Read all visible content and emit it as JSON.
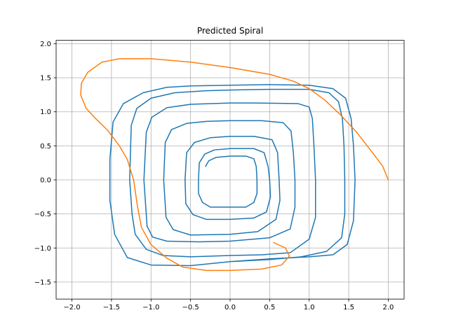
{
  "chart_data": {
    "type": "line",
    "title": "Predicted Spiral",
    "xlabel": "",
    "ylabel": "",
    "xlim": [
      -2.2,
      2.2
    ],
    "ylim": [
      -1.75,
      2.05
    ],
    "x_ticks": [
      -2.0,
      -1.5,
      -1.0,
      -0.5,
      0.0,
      0.5,
      1.0,
      1.5,
      2.0
    ],
    "x_tick_labels": [
      "−2.0",
      "−1.5",
      "−1.0",
      "−0.5",
      "0.0",
      "0.5",
      "1.0",
      "1.5",
      "2.0"
    ],
    "y_ticks": [
      -1.5,
      -1.0,
      -0.5,
      0.0,
      0.5,
      1.0,
      1.5,
      2.0
    ],
    "y_tick_labels": [
      "−1.5",
      "−1.0",
      "−0.5",
      "0.0",
      "0.5",
      "1.0",
      "1.5",
      "2.0"
    ],
    "grid": true,
    "legend": "none",
    "series": [
      {
        "color": "#1f77b4",
        "points": [
          [
            -0.31,
            0.2
          ],
          [
            -0.27,
            0.28
          ],
          [
            -0.18,
            0.33
          ],
          [
            0.0,
            0.35
          ],
          [
            0.2,
            0.35
          ],
          [
            0.3,
            0.31
          ],
          [
            0.33,
            0.2
          ],
          [
            0.34,
            0.0
          ],
          [
            0.34,
            -0.2
          ],
          [
            0.3,
            -0.33
          ],
          [
            0.2,
            -0.4
          ],
          [
            0.0,
            -0.4
          ],
          [
            -0.25,
            -0.4
          ],
          [
            -0.35,
            -0.33
          ],
          [
            -0.4,
            -0.2
          ],
          [
            -0.4,
            0.0
          ],
          [
            -0.39,
            0.25
          ],
          [
            -0.32,
            0.38
          ],
          [
            -0.2,
            0.44
          ],
          [
            0.0,
            0.46
          ],
          [
            0.3,
            0.46
          ],
          [
            0.43,
            0.4
          ],
          [
            0.48,
            0.2
          ],
          [
            0.5,
            0.0
          ],
          [
            0.51,
            -0.25
          ],
          [
            0.46,
            -0.47
          ],
          [
            0.3,
            -0.56
          ],
          [
            0.0,
            -0.58
          ],
          [
            -0.3,
            -0.58
          ],
          [
            -0.47,
            -0.51
          ],
          [
            -0.56,
            -0.35
          ],
          [
            -0.57,
            0.0
          ],
          [
            -0.55,
            0.4
          ],
          [
            -0.45,
            0.55
          ],
          [
            -0.25,
            0.62
          ],
          [
            0.0,
            0.64
          ],
          [
            0.3,
            0.64
          ],
          [
            0.53,
            0.59
          ],
          [
            0.6,
            0.4
          ],
          [
            0.62,
            0.0
          ],
          [
            0.63,
            -0.3
          ],
          [
            0.58,
            -0.58
          ],
          [
            0.35,
            -0.76
          ],
          [
            0.0,
            -0.8
          ],
          [
            -0.5,
            -0.81
          ],
          [
            -0.72,
            -0.73
          ],
          [
            -0.81,
            -0.55
          ],
          [
            -0.84,
            0.0
          ],
          [
            -0.82,
            0.55
          ],
          [
            -0.74,
            0.74
          ],
          [
            -0.55,
            0.83
          ],
          [
            -0.3,
            0.86
          ],
          [
            0.0,
            0.87
          ],
          [
            0.4,
            0.87
          ],
          [
            0.67,
            0.84
          ],
          [
            0.77,
            0.72
          ],
          [
            0.8,
            0.4
          ],
          [
            0.82,
            0.0
          ],
          [
            0.82,
            -0.4
          ],
          [
            0.76,
            -0.72
          ],
          [
            0.5,
            -0.85
          ],
          [
            0.0,
            -0.9
          ],
          [
            -0.4,
            -0.91
          ],
          [
            -0.8,
            -0.9
          ],
          [
            -0.98,
            -0.84
          ],
          [
            -1.05,
            -0.68
          ],
          [
            -1.09,
            0.0
          ],
          [
            -1.06,
            0.7
          ],
          [
            -0.99,
            0.92
          ],
          [
            -0.8,
            1.06
          ],
          [
            -0.5,
            1.11
          ],
          [
            0.0,
            1.13
          ],
          [
            0.3,
            1.13
          ],
          [
            0.86,
            1.12
          ],
          [
            1.0,
            1.07
          ],
          [
            1.04,
            0.9
          ],
          [
            1.06,
            0.5
          ],
          [
            1.08,
            0.0
          ],
          [
            1.08,
            -0.55
          ],
          [
            1.0,
            -0.87
          ],
          [
            0.76,
            -1.07
          ],
          [
            0.4,
            -1.1
          ],
          [
            0.0,
            -1.11
          ],
          [
            -0.5,
            -1.13
          ],
          [
            -0.85,
            -1.11
          ],
          [
            -1.06,
            -1.02
          ],
          [
            -1.2,
            -0.8
          ],
          [
            -1.24,
            -0.5
          ],
          [
            -1.27,
            0.0
          ],
          [
            -1.25,
            0.8
          ],
          [
            -1.18,
            1.05
          ],
          [
            -1.0,
            1.2
          ],
          [
            -0.7,
            1.28
          ],
          [
            -0.3,
            1.31
          ],
          [
            0.0,
            1.32
          ],
          [
            0.5,
            1.33
          ],
          [
            1.0,
            1.33
          ],
          [
            1.25,
            1.28
          ],
          [
            1.37,
            1.15
          ],
          [
            1.42,
            0.9
          ],
          [
            1.44,
            0.5
          ],
          [
            1.45,
            0.0
          ],
          [
            1.45,
            -0.5
          ],
          [
            1.41,
            -0.85
          ],
          [
            1.22,
            -1.05
          ],
          [
            0.9,
            -1.13
          ],
          [
            0.5,
            -1.17
          ],
          [
            0.0,
            -1.2
          ],
          [
            -0.5,
            -1.26
          ],
          [
            -1.0,
            -1.25
          ],
          [
            -1.3,
            -1.14
          ],
          [
            -1.46,
            -0.8
          ],
          [
            -1.52,
            -0.3
          ],
          [
            -1.52,
            0.3
          ],
          [
            -1.48,
            0.85
          ],
          [
            -1.35,
            1.12
          ],
          [
            -1.1,
            1.28
          ],
          [
            -0.8,
            1.36
          ],
          [
            -0.5,
            1.38
          ],
          [
            0.0,
            1.39
          ],
          [
            0.5,
            1.4
          ],
          [
            1.0,
            1.39
          ],
          [
            1.3,
            1.34
          ],
          [
            1.46,
            1.2
          ],
          [
            1.53,
            0.9
          ],
          [
            1.56,
            0.5
          ],
          [
            1.58,
            0.0
          ],
          [
            1.56,
            -0.6
          ],
          [
            1.48,
            -0.95
          ],
          [
            1.3,
            -1.1
          ],
          [
            1.0,
            -1.13
          ],
          [
            0.5,
            -1.16
          ],
          [
            0.0,
            -1.2
          ]
        ]
      },
      {
        "color": "#ff7f0e",
        "points": [
          [
            2.0,
            0.0
          ],
          [
            1.93,
            0.2
          ],
          [
            1.8,
            0.4
          ],
          [
            1.6,
            0.7
          ],
          [
            1.4,
            0.95
          ],
          [
            1.2,
            1.17
          ],
          [
            1.0,
            1.34
          ],
          [
            0.8,
            1.45
          ],
          [
            0.5,
            1.55
          ],
          [
            0.0,
            1.65
          ],
          [
            -0.5,
            1.73
          ],
          [
            -1.0,
            1.78
          ],
          [
            -1.4,
            1.78
          ],
          [
            -1.62,
            1.73
          ],
          [
            -1.8,
            1.58
          ],
          [
            -1.88,
            1.42
          ],
          [
            -1.89,
            1.25
          ],
          [
            -1.82,
            1.05
          ],
          [
            -1.7,
            0.9
          ],
          [
            -1.55,
            0.73
          ],
          [
            -1.4,
            0.5
          ],
          [
            -1.3,
            0.3
          ],
          [
            -1.22,
            0.0
          ],
          [
            -1.17,
            -0.4
          ],
          [
            -1.12,
            -0.7
          ],
          [
            -1.0,
            -0.95
          ],
          [
            -0.8,
            -1.15
          ],
          [
            -0.6,
            -1.28
          ],
          [
            -0.3,
            -1.33
          ],
          [
            0.0,
            -1.33
          ],
          [
            0.4,
            -1.31
          ],
          [
            0.65,
            -1.25
          ],
          [
            0.75,
            -1.12
          ],
          [
            0.7,
            -1.0
          ],
          [
            0.55,
            -0.92
          ]
        ]
      }
    ]
  }
}
